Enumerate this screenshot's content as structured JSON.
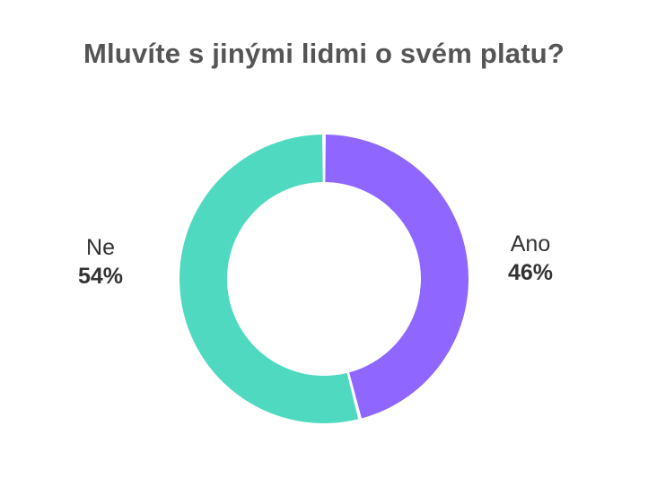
{
  "chart_data": {
    "type": "pie",
    "donut": true,
    "title": "Mluvíte s jinými lidmi o svém platu?",
    "slices": [
      {
        "label": "Ano",
        "value": 46,
        "value_label": "46%",
        "color": "#8f66ff"
      },
      {
        "label": "Ne",
        "value": 54,
        "value_label": "54%",
        "color": "#4fd9c1"
      }
    ],
    "start_angle_deg": 0,
    "direction": "clockwise",
    "legend": "none",
    "grid": false
  }
}
